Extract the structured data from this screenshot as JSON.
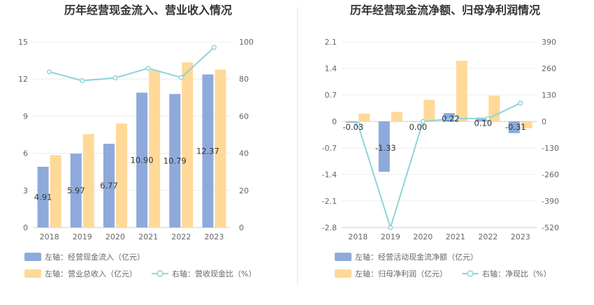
{
  "chart_data": [
    {
      "type": "bar",
      "title": "历年经营现金流入、营业收入情况",
      "categories": [
        "2018",
        "2019",
        "2020",
        "2021",
        "2022",
        "2023"
      ],
      "left_axis": {
        "min": 0,
        "max": 15,
        "ticks": [
          "0",
          "3",
          "6",
          "9",
          "12",
          "15"
        ]
      },
      "right_axis": {
        "min": 0,
        "max": 100,
        "ticks": [
          "0",
          "20",
          "40",
          "60",
          "80",
          "100"
        ]
      },
      "grid": true,
      "legend_position": "bottom-left",
      "series": [
        {
          "name": "左轴：经营现金流入（亿元）",
          "type": "bar",
          "axis": "left",
          "color": "#8eaadb",
          "values": [
            4.91,
            5.97,
            6.77,
            10.9,
            10.79,
            12.37
          ],
          "labels": [
            "4.91",
            "5.97",
            "6.77",
            "10.90",
            "10.79",
            "12.37"
          ]
        },
        {
          "name": "左轴：营业总收入（亿元）",
          "type": "bar",
          "axis": "left",
          "color": "#ffd998",
          "values": [
            5.85,
            7.55,
            8.4,
            12.7,
            13.35,
            12.75
          ]
        },
        {
          "name": "右轴：营收现金比（%）",
          "type": "line",
          "axis": "right",
          "color": "#8fd3d8",
          "values": [
            83.9,
            79.1,
            80.6,
            85.8,
            80.8,
            97.0
          ]
        }
      ]
    },
    {
      "type": "bar",
      "title": "历年经营现金流净额、归母净利润情况",
      "categories": [
        "2018",
        "2019",
        "2020",
        "2021",
        "2022",
        "2023"
      ],
      "left_axis": {
        "min": -2.8,
        "max": 2.1,
        "ticks": [
          "-2.8",
          "-2.1",
          "-1.4",
          "-0.7",
          "0",
          "0.7",
          "1.4",
          "2.1"
        ]
      },
      "right_axis": {
        "min": -520,
        "max": 390,
        "ticks": [
          "-520",
          "-390",
          "-260",
          "-130",
          "0",
          "130",
          "260",
          "390"
        ]
      },
      "grid": true,
      "legend_position": "bottom-left",
      "series": [
        {
          "name": "左轴：经营活动现金流净额（亿元）",
          "type": "bar",
          "axis": "left",
          "color": "#8eaadb",
          "values": [
            -0.03,
            -1.33,
            0.0,
            0.22,
            0.1,
            -0.31
          ],
          "labels": [
            "-0.03",
            "-1.33",
            "0.00",
            "0.22",
            "0.10",
            "-0.31"
          ]
        },
        {
          "name": "左轴：归母净利润（亿元）",
          "type": "bar",
          "axis": "left",
          "color": "#ffd998",
          "values": [
            0.21,
            0.25,
            0.57,
            1.6,
            0.68,
            -0.18
          ]
        },
        {
          "name": "右轴：净现比（%）",
          "type": "line",
          "axis": "right",
          "color": "#8fd3d8",
          "values": [
            -15,
            -520,
            0,
            14,
            14,
            90
          ]
        }
      ]
    }
  ]
}
